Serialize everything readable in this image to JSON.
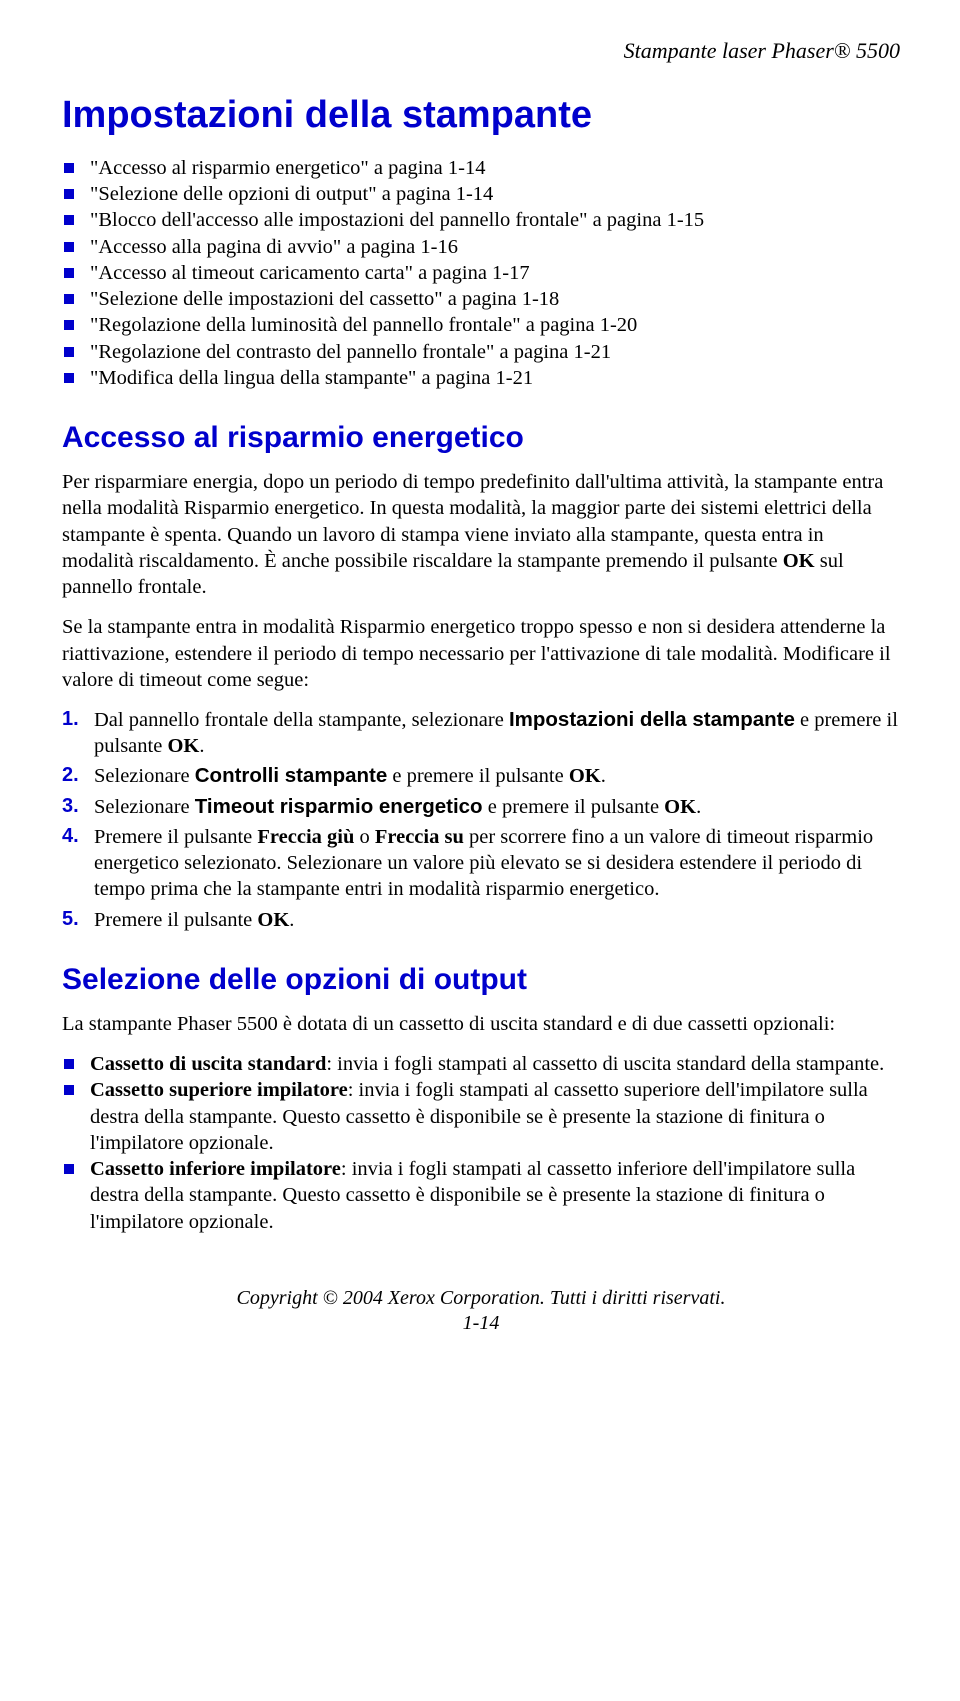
{
  "colors": {
    "accent": "#0000cc",
    "text": "#000000",
    "background": "#ffffff"
  },
  "typography": {
    "running_header_fontsize": 22,
    "h1_fontsize": 38,
    "h2_fontsize": 30,
    "body_fontsize": 20.5,
    "footer_fontsize": 20,
    "heading_font": "Arial",
    "body_font": "Times New Roman"
  },
  "running_header": "Stampante laser Phaser® 5500",
  "h1": "Impostazioni della stampante",
  "toc_items": [
    "\"Accesso al risparmio energetico\" a pagina 1-14",
    "\"Selezione delle opzioni di output\" a pagina 1-14",
    "\"Blocco dell'accesso alle impostazioni del pannello frontale\" a pagina 1-15",
    "\"Accesso alla pagina di avvio\" a pagina 1-16",
    "\"Accesso al timeout caricamento carta\" a pagina 1-17",
    "\"Selezione delle impostazioni del cassetto\" a pagina 1-18",
    "\"Regolazione della luminosità del pannello frontale\" a pagina 1-20",
    "\"Regolazione del contrasto del pannello frontale\" a pagina 1-21",
    "\"Modifica della lingua della stampante\" a pagina 1-21"
  ],
  "section1": {
    "heading": "Accesso al risparmio energetico",
    "para1_parts": [
      "Per risparmiare energia, dopo un periodo di tempo predefinito dall'ultima attività, la stampante entra nella modalità Risparmio energetico. In questa modalità, la maggior parte dei sistemi elettrici della stampante è spenta. Quando un lavoro di stampa viene inviato alla stampante, questa entra in modalità riscaldamento. È anche possibile riscaldare la stampante premendo il pulsante ",
      "OK",
      " sul pannello frontale."
    ],
    "para2": "Se la stampante entra in modalità Risparmio energetico troppo spesso e non si desidera attenderne la riattivazione, estendere il periodo di tempo necessario per l'attivazione di tale modalità. Modificare il valore di timeout come segue:",
    "steps": [
      {
        "num": "1.",
        "pre": "Dal pannello frontale della stampante, selezionare ",
        "sans": "Impostazioni della stampante",
        "mid": " e premere il pulsante ",
        "bold2": "OK",
        "post": "."
      },
      {
        "num": "2.",
        "pre": "Selezionare ",
        "sans": "Controlli stampante",
        "mid": " e premere il pulsante ",
        "bold2": "OK",
        "post": "."
      },
      {
        "num": "3.",
        "pre": "Selezionare ",
        "sans": "Timeout risparmio energetico",
        "mid": " e premere il pulsante ",
        "bold2": "OK",
        "post": "."
      },
      {
        "num": "4.",
        "text_parts": [
          "Premere il pulsante ",
          "Freccia giù",
          " o ",
          "Freccia su",
          " per scorrere fino a un valore di timeout risparmio energetico selezionato. Selezionare un valore più elevato se si desidera estendere il periodo di tempo prima che la stampante entri in modalità risparmio energetico."
        ]
      },
      {
        "num": "5.",
        "simple_pre": "Premere il pulsante ",
        "simple_bold": "OK",
        "simple_post": "."
      }
    ]
  },
  "section2": {
    "heading": "Selezione delle opzioni di output",
    "intro": "La stampante Phaser 5500 è dotata di un cassetto di uscita standard e di due cassetti opzionali:",
    "items": [
      {
        "bold": "Cassetto di uscita standard",
        "rest": ": invia i fogli stampati al cassetto di uscita standard della stampante."
      },
      {
        "bold": "Cassetto superiore impilatore",
        "rest": ": invia i fogli stampati al cassetto superiore dell'impilatore sulla destra della stampante. Questo cassetto è disponibile se è presente la stazione di finitura o l'impilatore opzionale."
      },
      {
        "bold": "Cassetto inferiore impilatore",
        "rest": ": invia i fogli stampati al cassetto inferiore dell'impilatore sulla destra della stampante. Questo cassetto è disponibile se è presente la stazione di finitura o l'impilatore opzionale."
      }
    ]
  },
  "footer": {
    "copyright": "Copyright © 2004 Xerox Corporation. Tutti i diritti riservati.",
    "page": "1-14"
  }
}
